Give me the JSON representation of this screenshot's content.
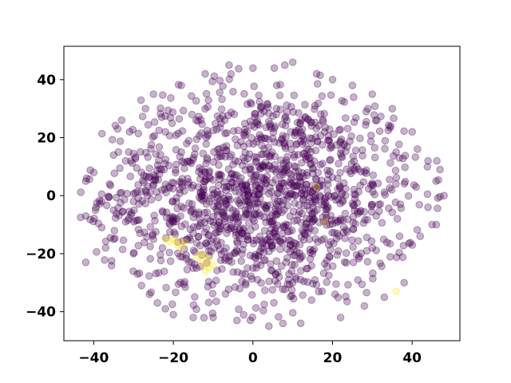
{
  "chart_data": {
    "type": "scatter",
    "title": "",
    "xlabel": "",
    "ylabel": "",
    "xlim": [
      -47.5,
      52
    ],
    "ylim": [
      -50,
      51.5
    ],
    "x_ticks": [
      -40,
      -20,
      0,
      20,
      40
    ],
    "y_ticks": [
      -40,
      -20,
      0,
      20,
      40
    ],
    "grid": false,
    "legend": "none",
    "marker_alpha": 0.3,
    "series": [
      {
        "color": "#440154",
        "point_count": 1500,
        "distribution": "dense elliptical cloud centered near (0, 0), x range -43 to 48, y range -46 to 47",
        "points": [
          [
            -42,
            5
          ],
          [
            -42,
            -7
          ],
          [
            -42,
            -23
          ],
          [
            -38,
            -11
          ],
          [
            -37,
            -18
          ],
          [
            -36,
            4
          ],
          [
            -35,
            -15
          ],
          [
            -35,
            14
          ],
          [
            -34,
            23
          ],
          [
            -33,
            26
          ],
          [
            -32,
            -9
          ],
          [
            -31,
            22
          ],
          [
            -30,
            -20
          ],
          [
            -29,
            -27
          ],
          [
            -28,
            -31
          ],
          [
            -27,
            30
          ],
          [
            -26,
            -34
          ],
          [
            -25,
            35
          ],
          [
            -24,
            -37
          ],
          [
            -22,
            -39
          ],
          [
            -20,
            -41
          ],
          [
            -18,
            38
          ],
          [
            -15,
            -42
          ],
          [
            -12,
            42
          ],
          [
            -10,
            -42
          ],
          [
            -6,
            45
          ],
          [
            -4,
            -43
          ],
          [
            0,
            44
          ],
          [
            4,
            -45
          ],
          [
            8,
            45
          ],
          [
            10,
            46
          ],
          [
            12,
            -44
          ],
          [
            16,
            42
          ],
          [
            20,
            40
          ],
          [
            22,
            -42
          ],
          [
            25,
            38
          ],
          [
            28,
            -38
          ],
          [
            30,
            35
          ],
          [
            33,
            -35
          ],
          [
            35,
            30
          ],
          [
            38,
            -30
          ],
          [
            40,
            22
          ],
          [
            42,
            -14
          ],
          [
            44,
            12
          ],
          [
            45,
            -10
          ],
          [
            46,
            5
          ],
          [
            47,
            9
          ],
          [
            48,
            0
          ],
          [
            44,
            -4
          ],
          [
            41,
            3
          ],
          [
            36,
            15
          ],
          [
            30,
            -18
          ],
          [
            26,
            10
          ],
          [
            22,
            -8
          ],
          [
            18,
            22
          ],
          [
            15,
            -20
          ],
          [
            12,
            5
          ],
          [
            10,
            -30
          ],
          [
            8,
            18
          ],
          [
            5,
            -10
          ],
          [
            2,
            30
          ],
          [
            0,
            -25
          ],
          [
            -2,
            12
          ],
          [
            -5,
            -5
          ],
          [
            -8,
            25
          ],
          [
            -10,
            -15
          ],
          [
            -12,
            8
          ],
          [
            -15,
            -25
          ],
          [
            -18,
            15
          ],
          [
            -20,
            -8
          ],
          [
            -22,
            22
          ],
          [
            -25,
            -15
          ],
          [
            -28,
            8
          ],
          [
            -30,
            -2
          ],
          [
            -32,
            12
          ],
          [
            -35,
            -5
          ],
          [
            -38,
            -2
          ],
          [
            -40,
            8
          ]
        ]
      },
      {
        "color": "#fde725",
        "point_count": 22,
        "distribution": "small cluster near (-20, -15) to (-10, -25), plus isolated points",
        "points": [
          [
            -22,
            -15
          ],
          [
            -21,
            -16
          ],
          [
            -20,
            -15
          ],
          [
            -19,
            -16
          ],
          [
            -18,
            -18
          ],
          [
            -19,
            -17
          ],
          [
            -17,
            -16
          ],
          [
            -14,
            -21
          ],
          [
            -13,
            -20
          ],
          [
            -12,
            -21
          ],
          [
            -12,
            -24
          ],
          [
            -11,
            -22
          ],
          [
            -10,
            -24
          ],
          [
            -12,
            -26
          ],
          [
            -13,
            -23
          ],
          [
            -11,
            -25
          ],
          [
            16,
            3
          ],
          [
            18,
            -9
          ],
          [
            36,
            -33
          ]
        ]
      }
    ]
  }
}
